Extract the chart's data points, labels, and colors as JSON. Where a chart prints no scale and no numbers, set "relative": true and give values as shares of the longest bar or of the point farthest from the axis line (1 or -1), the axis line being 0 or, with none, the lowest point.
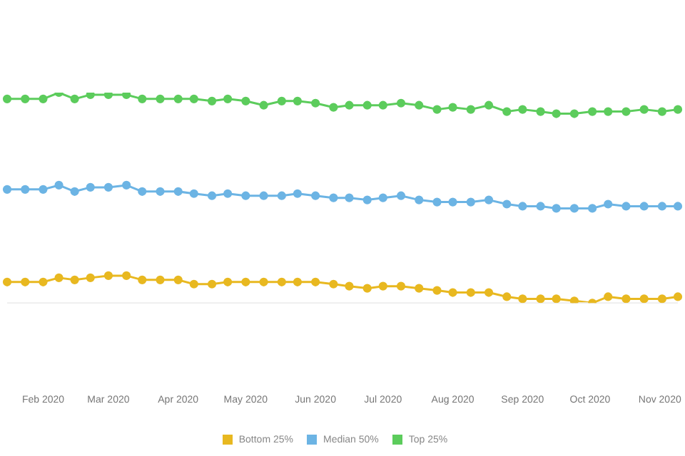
{
  "chart_data": {
    "type": "line",
    "relative": true,
    "legend": "bottom",
    "marker": "circle",
    "line_style": "solid",
    "x": [
      "2020-01-16",
      "2020-01-24",
      "2020-02-01",
      "2020-02-08",
      "2020-02-15",
      "2020-02-22",
      "2020-03-01",
      "2020-03-09",
      "2020-03-16",
      "2020-03-24",
      "2020-04-01",
      "2020-04-08",
      "2020-04-16",
      "2020-04-23",
      "2020-05-01",
      "2020-05-09",
      "2020-05-17",
      "2020-05-24",
      "2020-06-01",
      "2020-06-09",
      "2020-06-16",
      "2020-06-24",
      "2020-07-01",
      "2020-07-09",
      "2020-07-17",
      "2020-07-25",
      "2020-08-01",
      "2020-08-09",
      "2020-08-17",
      "2020-08-25",
      "2020-09-01",
      "2020-09-09",
      "2020-09-16",
      "2020-09-24",
      "2020-10-02",
      "2020-10-09",
      "2020-10-17",
      "2020-10-25",
      "2020-11-02",
      "2020-11-09"
    ],
    "xlim": [
      "2020-01-16",
      "2020-11-09"
    ],
    "xticks": [
      {
        "value": "2020-02-01",
        "label": "Feb 2020"
      },
      {
        "value": "2020-03-01",
        "label": "Mar 2020"
      },
      {
        "value": "2020-04-01",
        "label": "Apr 2020"
      },
      {
        "value": "2020-05-01",
        "label": "May 2020"
      },
      {
        "value": "2020-06-01",
        "label": "Jun 2020"
      },
      {
        "value": "2020-07-01",
        "label": "Jul 2020"
      },
      {
        "value": "2020-08-01",
        "label": "Aug 2020"
      },
      {
        "value": "2020-09-01",
        "label": "Sep 2020"
      },
      {
        "value": "2020-10-01",
        "label": "Oct 2020"
      },
      {
        "value": "2020-11-01",
        "label": "Nov 2020"
      }
    ],
    "series": [
      {
        "name": "Bottom 25%",
        "color": "#e8b820",
        "values": [
          0.1,
          0.1,
          0.1,
          0.12,
          0.11,
          0.12,
          0.13,
          0.13,
          0.11,
          0.11,
          0.11,
          0.09,
          0.09,
          0.1,
          0.1,
          0.1,
          0.1,
          0.1,
          0.1,
          0.09,
          0.08,
          0.07,
          0.08,
          0.08,
          0.07,
          0.06,
          0.05,
          0.05,
          0.05,
          0.03,
          0.02,
          0.02,
          0.02,
          0.01,
          0.0,
          0.03,
          0.02,
          0.02,
          0.02,
          0.03
        ]
      },
      {
        "name": "Median 50%",
        "color": "#6cb4e4",
        "values": [
          0.54,
          0.54,
          0.54,
          0.56,
          0.53,
          0.55,
          0.55,
          0.56,
          0.53,
          0.53,
          0.53,
          0.52,
          0.51,
          0.52,
          0.51,
          0.51,
          0.51,
          0.52,
          0.51,
          0.5,
          0.5,
          0.49,
          0.5,
          0.51,
          0.49,
          0.48,
          0.48,
          0.48,
          0.49,
          0.47,
          0.46,
          0.46,
          0.45,
          0.45,
          0.45,
          0.47,
          0.46,
          0.46,
          0.46,
          0.46
        ]
      },
      {
        "name": "Top 25%",
        "color": "#5ccc5c",
        "values": [
          0.97,
          0.97,
          0.97,
          1.0,
          0.97,
          0.99,
          0.99,
          0.99,
          0.97,
          0.97,
          0.97,
          0.97,
          0.96,
          0.97,
          0.96,
          0.94,
          0.96,
          0.96,
          0.95,
          0.93,
          0.94,
          0.94,
          0.94,
          0.95,
          0.94,
          0.92,
          0.93,
          0.92,
          0.94,
          0.91,
          0.92,
          0.91,
          0.9,
          0.9,
          0.91,
          0.91,
          0.91,
          0.92,
          0.91,
          0.92
        ]
      }
    ]
  }
}
